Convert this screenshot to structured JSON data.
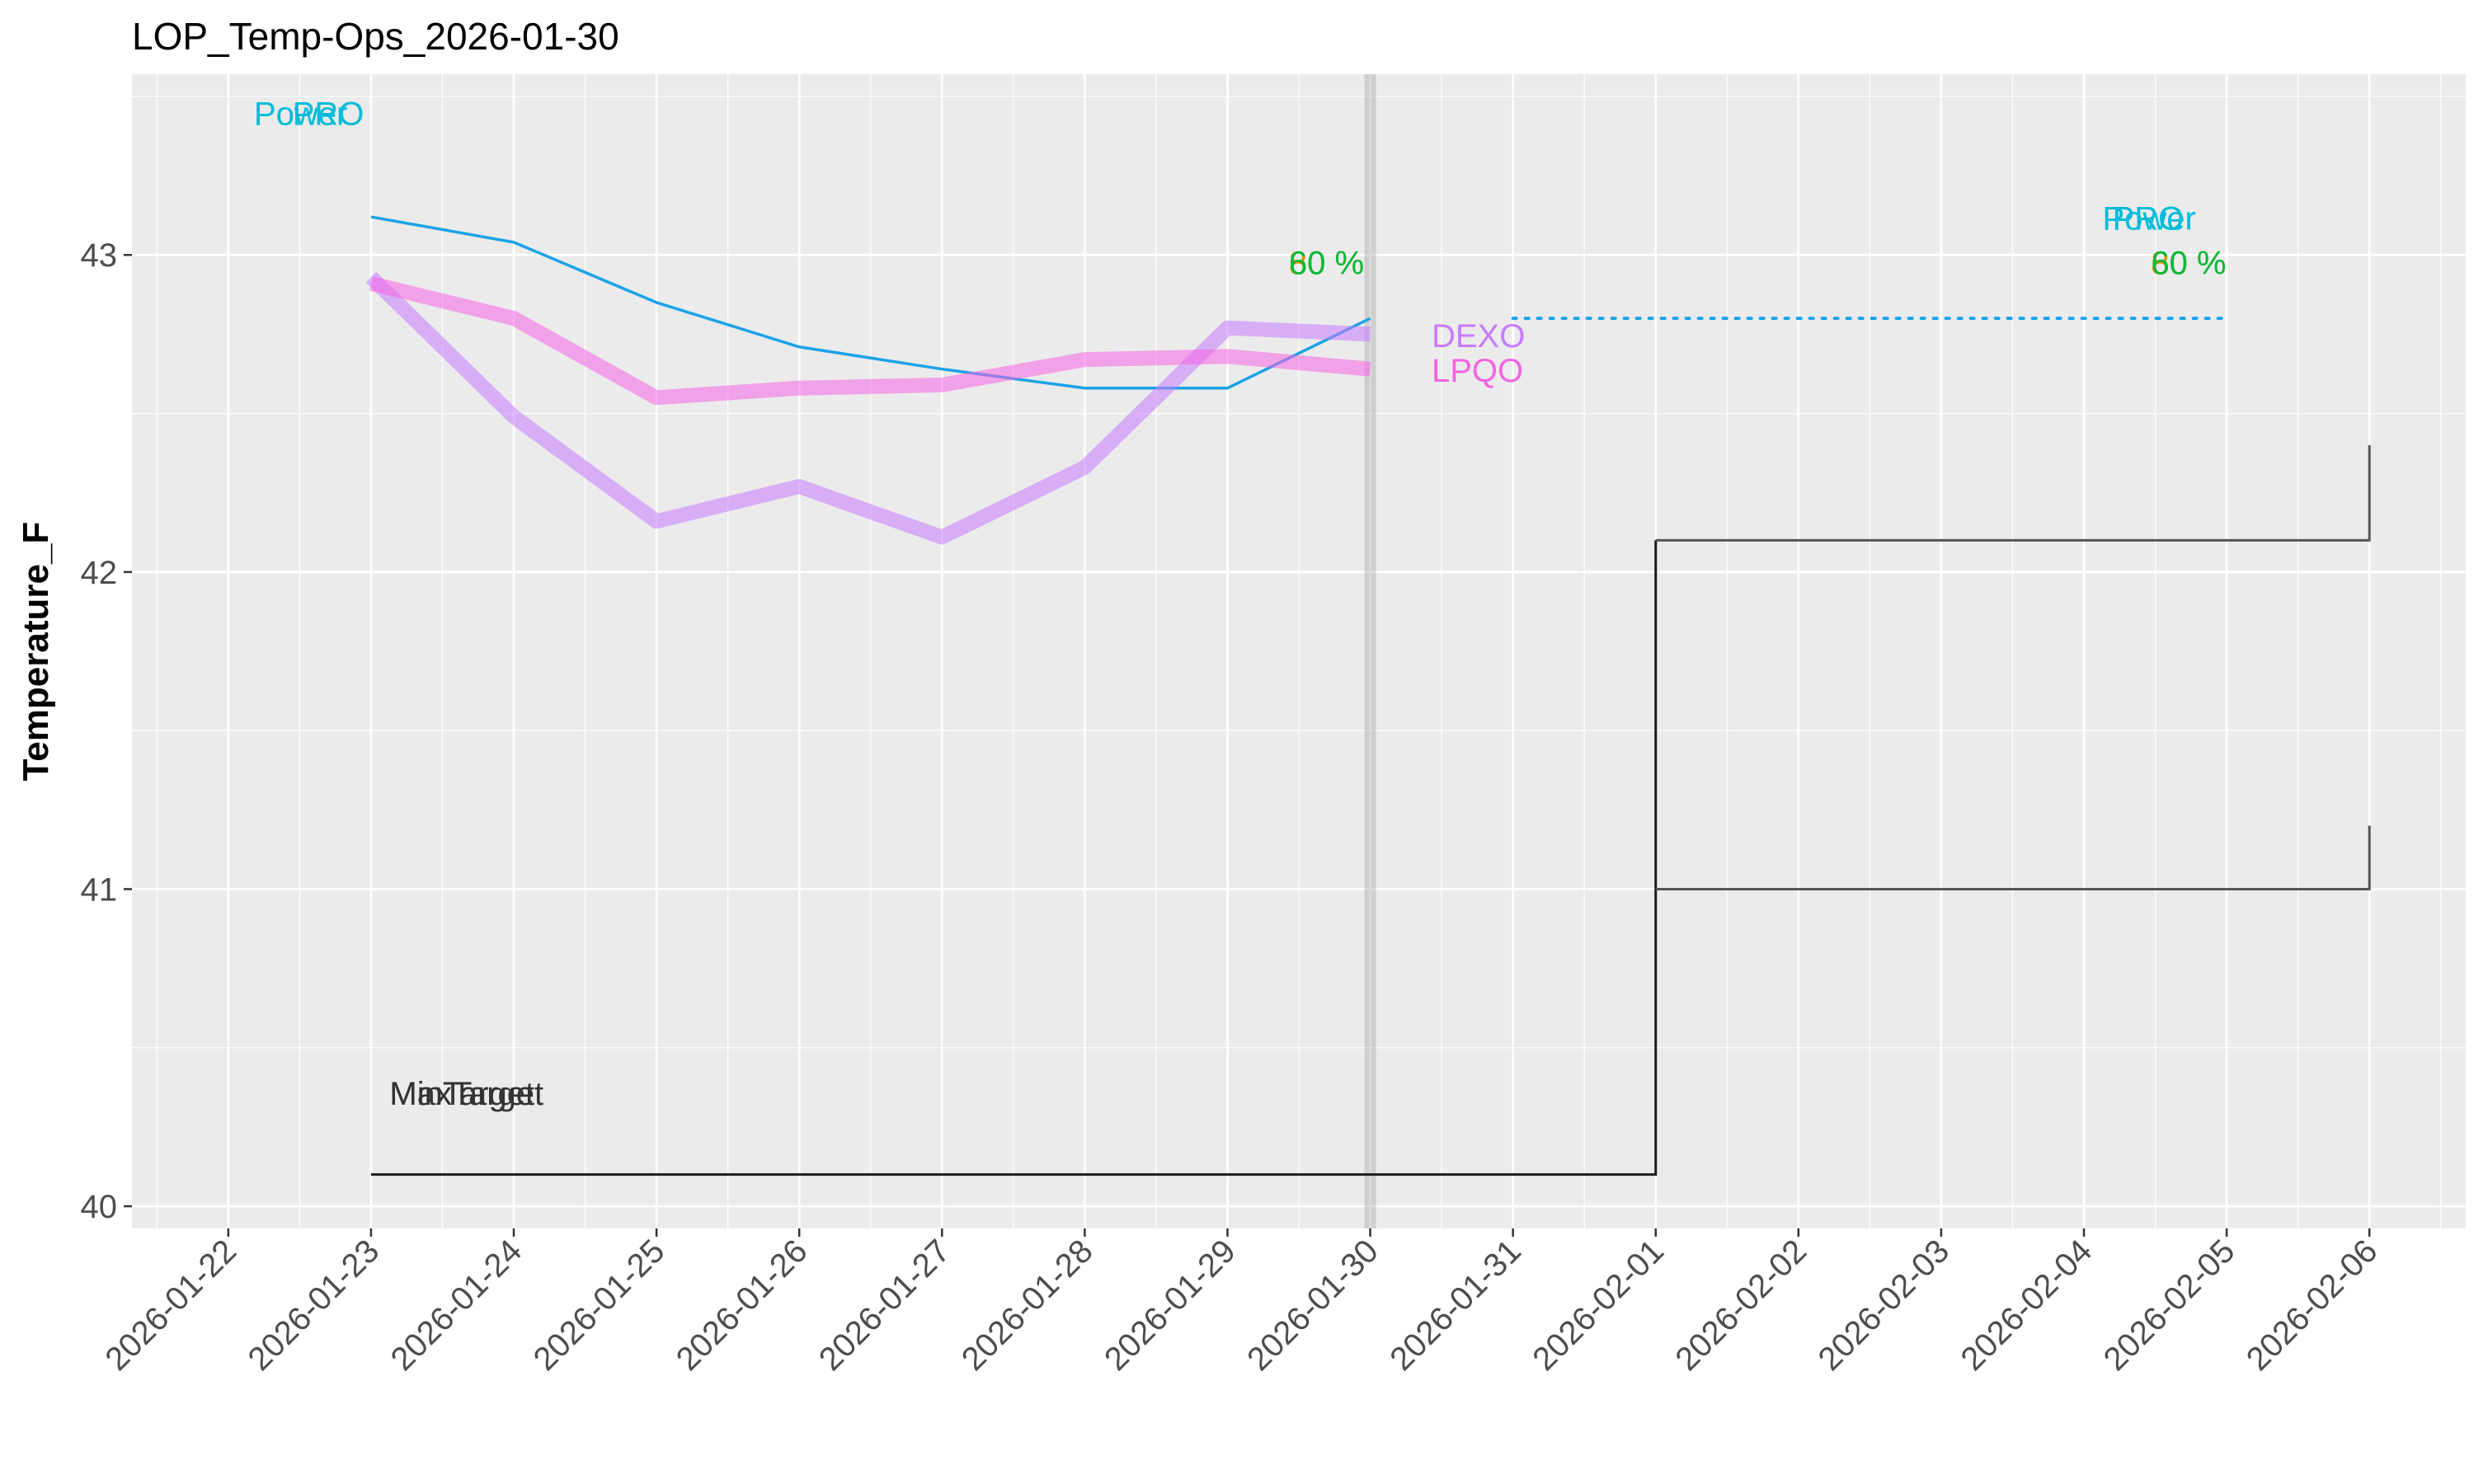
{
  "chart_data": {
    "type": "line",
    "title": "LOP_Temp-Ops_2026-01-30",
    "xlabel": "",
    "ylabel": "Temperature_F",
    "xlim": [
      "2026-01-22",
      "2026-02-06"
    ],
    "ylim": [
      40,
      43.5
    ],
    "grid": true,
    "legend": "none",
    "x_ticks": [
      "2026-01-22",
      "2026-01-23",
      "2026-01-24",
      "2026-01-25",
      "2026-01-26",
      "2026-01-27",
      "2026-01-28",
      "2026-01-29",
      "2026-01-30",
      "2026-01-31",
      "2026-02-01",
      "2026-02-02",
      "2026-02-03",
      "2026-02-04",
      "2026-02-05",
      "2026-02-06"
    ],
    "y_ticks": [
      40,
      41,
      42,
      43
    ],
    "current_date": "2026-01-30",
    "series": [
      {
        "color": "#1aa3e8",
        "style": "thin",
        "x": [
          "2026-01-23",
          "2026-01-24",
          "2026-01-25",
          "2026-01-26",
          "2026-01-27",
          "2026-01-28",
          "2026-01-29",
          "2026-01-30"
        ],
        "values": [
          43.12,
          43.04,
          42.85,
          42.71,
          42.64,
          42.58,
          42.58,
          42.8
        ]
      },
      {
        "name": "DEXO",
        "color": "#c77cff",
        "style": "thick",
        "x": [
          "2026-01-23",
          "2026-01-24",
          "2026-01-25",
          "2026-01-26",
          "2026-01-27",
          "2026-01-28",
          "2026-01-29",
          "2026-01-30"
        ],
        "values": [
          42.93,
          42.49,
          42.16,
          42.27,
          42.11,
          42.33,
          42.77,
          42.75
        ]
      },
      {
        "name": "LPQO",
        "color": "#f564e3",
        "style": "thick",
        "x": [
          "2026-01-23",
          "2026-01-24",
          "2026-01-25",
          "2026-01-26",
          "2026-01-27",
          "2026-01-28",
          "2026-01-29",
          "2026-01-30"
        ],
        "values": [
          42.91,
          42.8,
          42.55,
          42.58,
          42.59,
          42.67,
          42.68,
          42.64
        ]
      }
    ],
    "forecast": {
      "color": "#1aa3e8",
      "style": "dotted",
      "x": [
        "2026-01-31",
        "2026-02-05"
      ],
      "values": [
        42.8,
        42.8
      ]
    },
    "steps": [
      {
        "color": "#1a1a1a",
        "x": [
          "2026-01-23",
          "2026-02-01",
          "2026-02-01"
        ],
        "values": [
          40.1,
          40.1,
          42.1
        ]
      },
      {
        "color": "#555555",
        "x": [
          "2026-02-01",
          "2026-02-06",
          "2026-02-06"
        ],
        "values": [
          42.1,
          42.1,
          42.4
        ]
      },
      {
        "color": "#555555",
        "x": [
          "2026-02-01",
          "2026-02-06",
          "2026-02-06"
        ],
        "values": [
          41.0,
          41.0,
          41.2
        ]
      }
    ],
    "annotations": [
      {
        "text": "PRO",
        "x": "2026-01-22.45",
        "y": 43.41,
        "color": "#00bcd8",
        "anchor": "start"
      },
      {
        "text": "Power",
        "x": "2026-01-22.18",
        "y": 43.41,
        "color": "#00bcd8",
        "anchor": "start"
      },
      {
        "text": "PRO",
        "x": "2026-02-04.2",
        "y": 43.08,
        "color": "#00bcd8",
        "anchor": "start"
      },
      {
        "text": "Power",
        "x": "2026-02-04.13",
        "y": 43.08,
        "color": "#00bcd8",
        "anchor": "start"
      },
      {
        "text": "80 %",
        "x": "2026-01-29.43",
        "y": 42.94,
        "color": "#d89000",
        "anchor": "start"
      },
      {
        "text": "60 %",
        "x": "2026-01-29.43",
        "y": 42.94,
        "color": "#00ba38",
        "anchor": "start"
      },
      {
        "text": "80 %",
        "x": "2026-02-04.47",
        "y": 42.94,
        "color": "#d89000",
        "anchor": "start"
      },
      {
        "text": "60 %",
        "x": "2026-02-04.47",
        "y": 42.94,
        "color": "#00ba38",
        "anchor": "start"
      },
      {
        "text": "DEXO",
        "x": "2026-01-30.43",
        "y": 42.71,
        "color": "#c77cff",
        "anchor": "start"
      },
      {
        "text": "LPQO",
        "x": "2026-01-30.43",
        "y": 42.6,
        "color": "#f564e3",
        "anchor": "start"
      },
      {
        "text": "MinTarget",
        "x": "2026-01-23.13",
        "y": 40.32,
        "color": "#333333",
        "anchor": "start"
      },
      {
        "text": "MaxTarget",
        "x": "2026-01-23.13",
        "y": 40.32,
        "color": "#333333",
        "anchor": "start"
      }
    ]
  }
}
